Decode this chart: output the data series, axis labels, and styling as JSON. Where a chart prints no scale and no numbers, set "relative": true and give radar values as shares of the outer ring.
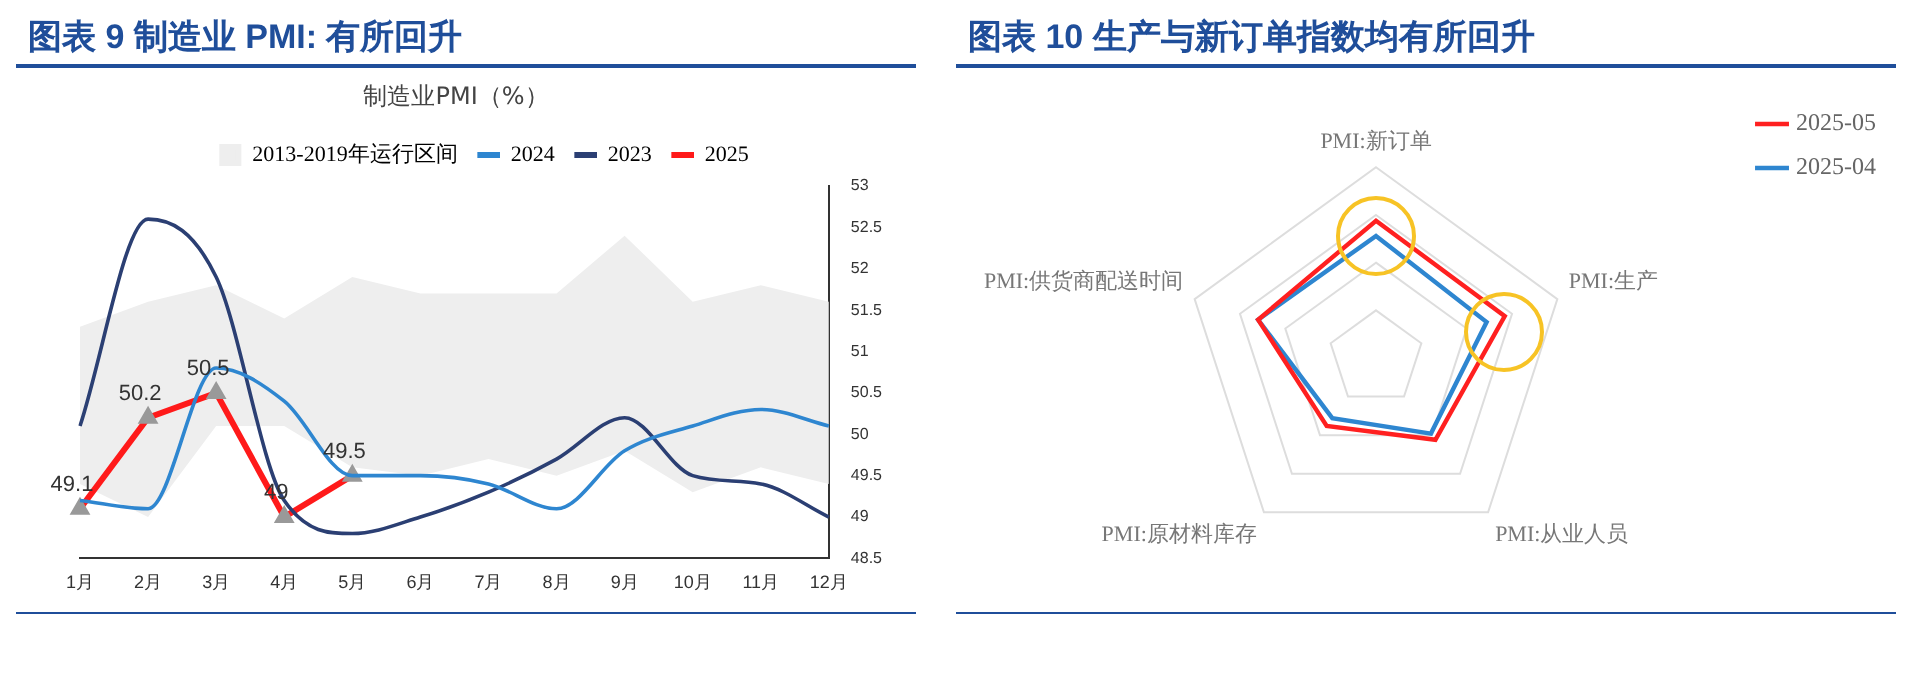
{
  "chart_data": [
    {
      "type": "line",
      "title": "图表 9 制造业 PMI: 有所回升",
      "subtitle": "制造业PMI（%）",
      "categories": [
        "1月",
        "2月",
        "3月",
        "4月",
        "5月",
        "6月",
        "7月",
        "8月",
        "9月",
        "10月",
        "11月",
        "12月"
      ],
      "series": [
        {
          "name": "2013-2019年运行区间",
          "type": "area",
          "color": "#eeeeee",
          "lower": [
            49.4,
            49.0,
            50.1,
            50.1,
            49.6,
            49.5,
            49.7,
            49.5,
            49.8,
            49.3,
            49.6,
            49.4
          ],
          "upper": [
            51.3,
            51.6,
            51.8,
            51.4,
            51.9,
            51.7,
            51.7,
            51.7,
            52.4,
            51.6,
            51.8,
            51.6
          ],
          "values": [
            null,
            null,
            null,
            null,
            null,
            null,
            null,
            null,
            null,
            null,
            null,
            null
          ]
        },
        {
          "name": "2024",
          "color": "#2e86d0",
          "values": [
            49.2,
            49.1,
            50.8,
            50.4,
            49.5,
            49.5,
            49.4,
            49.1,
            49.8,
            50.1,
            50.3,
            50.1
          ]
        },
        {
          "name": "2023",
          "color": "#2b3f73",
          "values": [
            50.1,
            52.6,
            51.9,
            49.2,
            48.8,
            49.0,
            49.3,
            49.7,
            50.2,
            49.5,
            49.4,
            49.0
          ]
        },
        {
          "name": "2025",
          "color": "#ff1a1a",
          "marker": "triangle",
          "values": [
            49.1,
            50.2,
            50.5,
            49.0,
            49.5,
            null,
            null,
            null,
            null,
            null,
            null,
            null
          ],
          "value_labels": [
            "49.1",
            "50.2",
            "50.5",
            "49",
            "49.5",
            null,
            null,
            null,
            null,
            null,
            null,
            null
          ]
        }
      ],
      "ylim": [
        48.5,
        53
      ],
      "yticks": [
        48.5,
        49,
        49.5,
        50,
        50.5,
        51,
        51.5,
        52,
        52.5,
        53
      ],
      "grid": false,
      "legend": "top"
    },
    {
      "type": "radar",
      "title": "图表 10 生产与新订单指数均有所回升",
      "relative": true,
      "categories": [
        "PMI:新订单",
        "PMI:生产",
        "PMI:从业人员",
        "PMI:原材料库存",
        "PMI:供货商配送时间"
      ],
      "series": [
        {
          "name": "2025-05",
          "color": "#ff2020",
          "values": [
            0.72,
            0.71,
            0.53,
            0.44,
            0.65
          ]
        },
        {
          "name": "2025-04",
          "color": "#2e86d0",
          "values": [
            0.64,
            0.61,
            0.49,
            0.39,
            0.65
          ]
        }
      ],
      "legend": "top right"
    }
  ]
}
